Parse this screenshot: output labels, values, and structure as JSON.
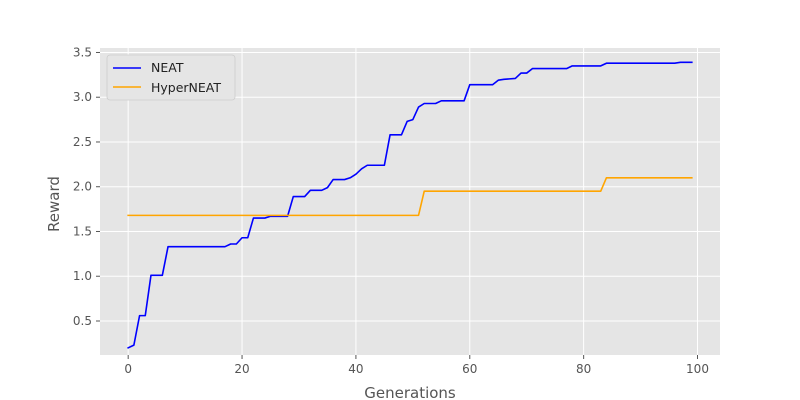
{
  "chart_data": {
    "type": "line",
    "title": "",
    "xlabel": "Generations",
    "ylabel": "Reward",
    "xlim": [
      -4.95,
      103.95
    ],
    "ylim": [
      0.12,
      3.55
    ],
    "xticks": [
      0,
      20,
      40,
      60,
      80,
      100
    ],
    "yticks": [
      0.5,
      1.0,
      1.5,
      2.0,
      2.5,
      3.0,
      3.5
    ],
    "xtick_labels": [
      "0",
      "20",
      "40",
      "60",
      "80",
      "100"
    ],
    "ytick_labels": [
      "0.5",
      "1.0",
      "1.5",
      "2.0",
      "2.5",
      "3.0",
      "3.5"
    ],
    "grid": true,
    "style": "ggplot",
    "legend_position": "top-left",
    "series": [
      {
        "name": "NEAT",
        "color": "#0000ff",
        "points": [
          [
            0,
            0.2
          ],
          [
            1,
            0.23
          ],
          [
            2,
            0.56
          ],
          [
            3,
            0.56
          ],
          [
            4,
            1.01
          ],
          [
            5,
            1.01
          ],
          [
            6,
            1.01
          ],
          [
            7,
            1.33
          ],
          [
            17,
            1.33
          ],
          [
            18,
            1.36
          ],
          [
            19,
            1.36
          ],
          [
            20,
            1.43
          ],
          [
            21,
            1.43
          ],
          [
            22,
            1.65
          ],
          [
            24,
            1.65
          ],
          [
            25,
            1.67
          ],
          [
            28,
            1.67
          ],
          [
            29,
            1.89
          ],
          [
            31,
            1.89
          ],
          [
            32,
            1.96
          ],
          [
            34,
            1.96
          ],
          [
            35,
            1.99
          ],
          [
            36,
            2.08
          ],
          [
            38,
            2.08
          ],
          [
            39,
            2.1
          ],
          [
            40,
            2.14
          ],
          [
            41,
            2.2
          ],
          [
            42,
            2.24
          ],
          [
            45,
            2.24
          ],
          [
            46,
            2.58
          ],
          [
            48,
            2.58
          ],
          [
            49,
            2.73
          ],
          [
            50,
            2.75
          ],
          [
            51,
            2.89
          ],
          [
            52,
            2.93
          ],
          [
            54,
            2.93
          ],
          [
            55,
            2.96
          ],
          [
            59,
            2.96
          ],
          [
            60,
            3.14
          ],
          [
            64,
            3.14
          ],
          [
            65,
            3.19
          ],
          [
            66,
            3.2
          ],
          [
            68,
            3.21
          ],
          [
            69,
            3.27
          ],
          [
            70,
            3.27
          ],
          [
            71,
            3.32
          ],
          [
            77,
            3.32
          ],
          [
            78,
            3.35
          ],
          [
            83,
            3.35
          ],
          [
            84,
            3.38
          ],
          [
            96,
            3.38
          ],
          [
            97,
            3.39
          ],
          [
            99,
            3.39
          ]
        ]
      },
      {
        "name": "HyperNEAT",
        "color": "#ffa500",
        "points": [
          [
            0,
            1.68
          ],
          [
            51,
            1.68
          ],
          [
            52,
            1.95
          ],
          [
            83,
            1.95
          ],
          [
            84,
            2.1
          ],
          [
            99,
            2.1
          ]
        ]
      }
    ]
  }
}
